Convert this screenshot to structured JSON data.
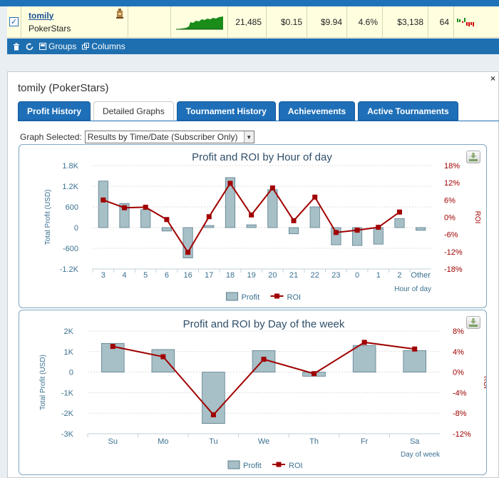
{
  "player_row": {
    "checked": true,
    "name": "tomily",
    "site": "PokerStars",
    "games": "21,485",
    "avg_stake": "$0.15",
    "avg_profit": "$9.94",
    "roi": "4.6%",
    "total_profit": "$3,138",
    "ability": "64"
  },
  "toolbar": {
    "groups_label": "Groups",
    "columns_label": "Columns"
  },
  "panel": {
    "title": "tomily (PokerStars)",
    "close_label": "×",
    "tabs": [
      {
        "label": "Profit History",
        "active": false
      },
      {
        "label": "Detailed Graphs",
        "active": true
      },
      {
        "label": "Tournament History",
        "active": false
      },
      {
        "label": "Achievements",
        "active": false
      },
      {
        "label": "Active Tournaments",
        "active": false
      }
    ],
    "graph_selected_label": "Graph Selected:",
    "graph_selected_value": "Results by Time/Date (Subscriber Only)"
  },
  "colors": {
    "bar": "#a7bfc6",
    "bar_border": "#5c7f8f",
    "roi_line": "#a00000",
    "axis_text": "#3a7190",
    "accent": "#1e6fb8"
  },
  "chart_data": [
    {
      "type": "bar",
      "title": "Profit and ROI by Hour of day",
      "xlabel": "Hour of day",
      "ylabel": "Total Profit (USD)",
      "y2label": "ROI",
      "categories": [
        "3",
        "4",
        "5",
        "6",
        "16",
        "17",
        "18",
        "19",
        "20",
        "21",
        "22",
        "23",
        "0",
        "1",
        "2",
        "Other"
      ],
      "ylim": [
        -1200,
        1800
      ],
      "yticks": [
        "1.8K",
        "1.2K",
        "600",
        "0",
        "-600",
        "-1.2K"
      ],
      "y2lim": [
        -18,
        18
      ],
      "y2ticks": [
        "18%",
        "12%",
        "6%",
        "0%",
        "-6%",
        "-12%",
        "-18%"
      ],
      "legend": [
        "Profit",
        "ROI"
      ],
      "series": [
        {
          "name": "Profit",
          "values": [
            1350,
            700,
            520,
            -100,
            -880,
            60,
            1450,
            80,
            1100,
            -180,
            600,
            -500,
            -520,
            -480,
            260,
            -80
          ]
        },
        {
          "name": "ROI",
          "values": [
            6,
            3.3,
            3.5,
            -0.8,
            -12.2,
            0.2,
            11.8,
            0.8,
            10.2,
            -1.2,
            7,
            -5.3,
            -4.5,
            -3.5,
            1.8,
            null
          ]
        }
      ]
    },
    {
      "type": "bar",
      "title": "Profit and ROI by Day of the week",
      "xlabel": "Day of week",
      "ylabel": "Total Profit (USD)",
      "y2label": "ROI",
      "categories": [
        "Su",
        "Mo",
        "Tu",
        "We",
        "Th",
        "Fr",
        "Sa"
      ],
      "ylim": [
        -3000,
        2000
      ],
      "yticks": [
        "2K",
        "1K",
        "0",
        "-1K",
        "-2K",
        "-3K"
      ],
      "y2lim": [
        -12,
        8
      ],
      "y2ticks": [
        "8%",
        "4%",
        "0%",
        "-4%",
        "-8%",
        "-12%"
      ],
      "legend": [
        "Profit",
        "ROI"
      ],
      "series": [
        {
          "name": "Profit",
          "values": [
            1400,
            1100,
            -2500,
            1050,
            -200,
            1300,
            1050
          ]
        },
        {
          "name": "ROI",
          "values": [
            5,
            3,
            -8.3,
            2.5,
            -0.3,
            5.8,
            4.5
          ]
        }
      ]
    }
  ]
}
